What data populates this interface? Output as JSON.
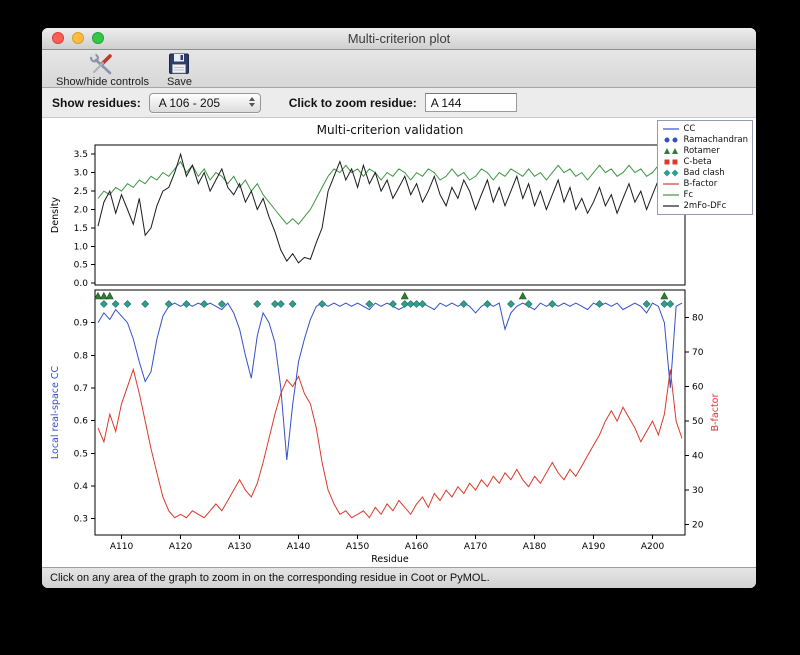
{
  "window": {
    "title": "Multi-criterion plot"
  },
  "toolbar": {
    "show_hide_label": "Show/hide controls",
    "save_label": "Save"
  },
  "controls": {
    "show_residues_label": "Show residues:",
    "residue_range_value": "A 106 - 205",
    "zoom_residue_label": "Click to zoom residue:",
    "zoom_residue_value": "A 144"
  },
  "status_bar": {
    "text": "Click on any area of the graph to zoom in on the corresponding residue in Coot or PyMOL."
  },
  "chart_data": {
    "type": "line",
    "title": "Multi-criterion validation",
    "x_axis": {
      "label": "Residue",
      "prefix": "A",
      "start": 106,
      "min": 105.5,
      "max": 205.5,
      "ticks": [
        110,
        120,
        130,
        140,
        150,
        160,
        170,
        180,
        190,
        200
      ]
    },
    "top": {
      "ylabel": "Density",
      "ymin": -0.05,
      "ymax": 3.75,
      "yticks": [
        0,
        0.5,
        1,
        1.5,
        2,
        2.5,
        3,
        3.5
      ],
      "series": [
        {
          "name": "Fc",
          "color": "#3e9643",
          "values": [
            2.3,
            2.5,
            2.4,
            2.6,
            2.5,
            2.7,
            2.6,
            2.8,
            2.7,
            2.9,
            2.8,
            3.0,
            2.9,
            3.1,
            3.3,
            3.0,
            3.2,
            2.9,
            3.1,
            2.8,
            3.0,
            2.9,
            2.7,
            2.9,
            2.6,
            2.8,
            2.5,
            2.7,
            2.4,
            2.2,
            2.0,
            1.8,
            1.6,
            1.75,
            1.6,
            1.8,
            2.0,
            2.3,
            2.6,
            2.9,
            3.1,
            3.0,
            3.2,
            3.0,
            3.1,
            2.9,
            3.1,
            3.0,
            2.8,
            3.0,
            2.9,
            3.1,
            3.0,
            2.8,
            3.0,
            2.9,
            3.1,
            3.0,
            2.8,
            2.9,
            3.1,
            2.9,
            3.0,
            2.8,
            2.9,
            3.1,
            3.0,
            2.8,
            3.0,
            2.9,
            3.1,
            3.0,
            2.9,
            3.1,
            2.9,
            3.0,
            2.8,
            3.0,
            3.2,
            3.0,
            3.1,
            2.9,
            3.0,
            2.8,
            3.0,
            3.2,
            3.0,
            3.1,
            2.9,
            3.0,
            3.2,
            3.0,
            3.1,
            2.9,
            3.0,
            3.2,
            3.0,
            3.1,
            2.9,
            3.0
          ]
        },
        {
          "name": "2mFo-DFc",
          "color": "#1a1a1a",
          "values": [
            1.55,
            2.2,
            2.5,
            1.9,
            2.4,
            2.0,
            1.6,
            2.3,
            1.3,
            1.5,
            2.1,
            2.5,
            2.6,
            3.0,
            3.5,
            2.9,
            3.2,
            2.7,
            3.0,
            2.5,
            2.8,
            3.1,
            2.6,
            2.4,
            2.7,
            2.2,
            2.5,
            2.0,
            2.3,
            1.8,
            1.4,
            0.9,
            0.6,
            0.8,
            0.55,
            0.7,
            0.65,
            1.1,
            1.5,
            2.5,
            2.9,
            3.3,
            2.8,
            3.1,
            2.6,
            3.2,
            2.7,
            3.0,
            2.5,
            2.8,
            2.3,
            2.6,
            2.9,
            2.4,
            2.7,
            2.2,
            2.5,
            2.9,
            2.4,
            2.1,
            2.6,
            2.3,
            2.8,
            2.5,
            2.0,
            2.4,
            2.8,
            2.2,
            2.6,
            2.1,
            2.5,
            2.9,
            2.3,
            2.7,
            2.1,
            2.5,
            2.0,
            2.4,
            2.8,
            2.2,
            2.6,
            2.0,
            2.3,
            1.9,
            2.2,
            2.6,
            2.1,
            2.4,
            1.9,
            2.3,
            2.7,
            2.2,
            2.5,
            2.0,
            2.4,
            2.8,
            2.3,
            2.6,
            2.1,
            2.4
          ]
        }
      ]
    },
    "bottom": {
      "left_ylabel": "Local real-space CC",
      "left_color": "#3450c8",
      "left_ymin": 0.25,
      "left_ymax": 1.0,
      "left_yticks": [
        0.3,
        0.4,
        0.5,
        0.6,
        0.7,
        0.8,
        0.9
      ],
      "right_ylabel": "B-factor",
      "right_color": "#d93a2b",
      "right_ymin": 17,
      "right_ymax": 88,
      "right_yticks": [
        20,
        30,
        40,
        50,
        60,
        70,
        80
      ],
      "series": [
        {
          "name": "B-factor",
          "axis": "right",
          "color": "#d93a2b",
          "values": [
            48,
            44,
            52,
            47,
            55,
            60,
            65,
            58,
            50,
            42,
            35,
            28,
            24,
            22,
            23,
            22,
            24,
            23,
            22,
            24,
            26,
            24,
            27,
            30,
            33,
            30,
            28,
            32,
            38,
            45,
            52,
            58,
            62,
            60,
            63,
            58,
            55,
            48,
            38,
            30,
            26,
            23,
            24,
            22,
            23,
            24,
            22,
            25,
            23,
            26,
            24,
            27,
            25,
            23,
            26,
            28,
            25,
            29,
            27,
            30,
            28,
            31,
            29,
            32,
            30,
            33,
            31,
            34,
            32,
            35,
            33,
            36,
            33,
            31,
            34,
            32,
            35,
            38,
            35,
            33,
            36,
            34,
            37,
            40,
            43,
            46,
            50,
            53,
            50,
            54,
            51,
            48,
            44,
            47,
            50,
            46,
            52,
            65,
            50,
            45
          ]
        },
        {
          "name": "CC",
          "axis": "left",
          "color": "#3450c8",
          "values": [
            0.9,
            0.93,
            0.91,
            0.94,
            0.92,
            0.9,
            0.85,
            0.78,
            0.72,
            0.75,
            0.85,
            0.92,
            0.95,
            0.96,
            0.95,
            0.96,
            0.95,
            0.96,
            0.95,
            0.96,
            0.95,
            0.94,
            0.96,
            0.93,
            0.88,
            0.8,
            0.73,
            0.86,
            0.93,
            0.9,
            0.84,
            0.7,
            0.48,
            0.65,
            0.78,
            0.85,
            0.91,
            0.95,
            0.96,
            0.95,
            0.96,
            0.95,
            0.96,
            0.95,
            0.96,
            0.95,
            0.94,
            0.96,
            0.95,
            0.96,
            0.95,
            0.94,
            0.95,
            0.96,
            0.95,
            0.96,
            0.95,
            0.94,
            0.96,
            0.95,
            0.96,
            0.95,
            0.96,
            0.95,
            0.93,
            0.95,
            0.96,
            0.95,
            0.96,
            0.88,
            0.93,
            0.95,
            0.96,
            0.95,
            0.94,
            0.96,
            0.95,
            0.96,
            0.95,
            0.96,
            0.95,
            0.96,
            0.95,
            0.94,
            0.96,
            0.95,
            0.96,
            0.95,
            0.96,
            0.94,
            0.95,
            0.96,
            0.95,
            0.93,
            0.96,
            0.95,
            0.9,
            0.7,
            0.95,
            0.96
          ]
        }
      ],
      "markers": [
        {
          "name": "Rotamer",
          "shape": "triangle",
          "color": "#2e7d32",
          "residues": [
            106,
            107,
            108,
            158,
            178,
            202
          ]
        },
        {
          "name": "Bad clash",
          "shape": "diamond",
          "color": "#2f9e8f",
          "residues": [
            107,
            109,
            111,
            114,
            118,
            121,
            124,
            127,
            133,
            136,
            137,
            139,
            144,
            152,
            156,
            158,
            159,
            160,
            161,
            168,
            172,
            176,
            179,
            183,
            191,
            199,
            202,
            203
          ]
        }
      ]
    },
    "legend": [
      {
        "label": "CC",
        "symbol": "line",
        "color": "#3450c8"
      },
      {
        "label": "Ramachandran",
        "symbol": "circles",
        "color": "#3450c8"
      },
      {
        "label": "Rotamer",
        "symbol": "triangles",
        "color": "#2e7d32"
      },
      {
        "label": "C-beta",
        "symbol": "squares",
        "color": "#d93a2b"
      },
      {
        "label": "Bad clash",
        "symbol": "diamonds",
        "color": "#2f9e8f"
      },
      {
        "label": "B-factor",
        "symbol": "line",
        "color": "#d93a2b"
      },
      {
        "label": "Fc",
        "symbol": "line",
        "color": "#3e9643"
      },
      {
        "label": "2mFo-DFc",
        "symbol": "line",
        "color": "#1a1a1a"
      }
    ]
  }
}
